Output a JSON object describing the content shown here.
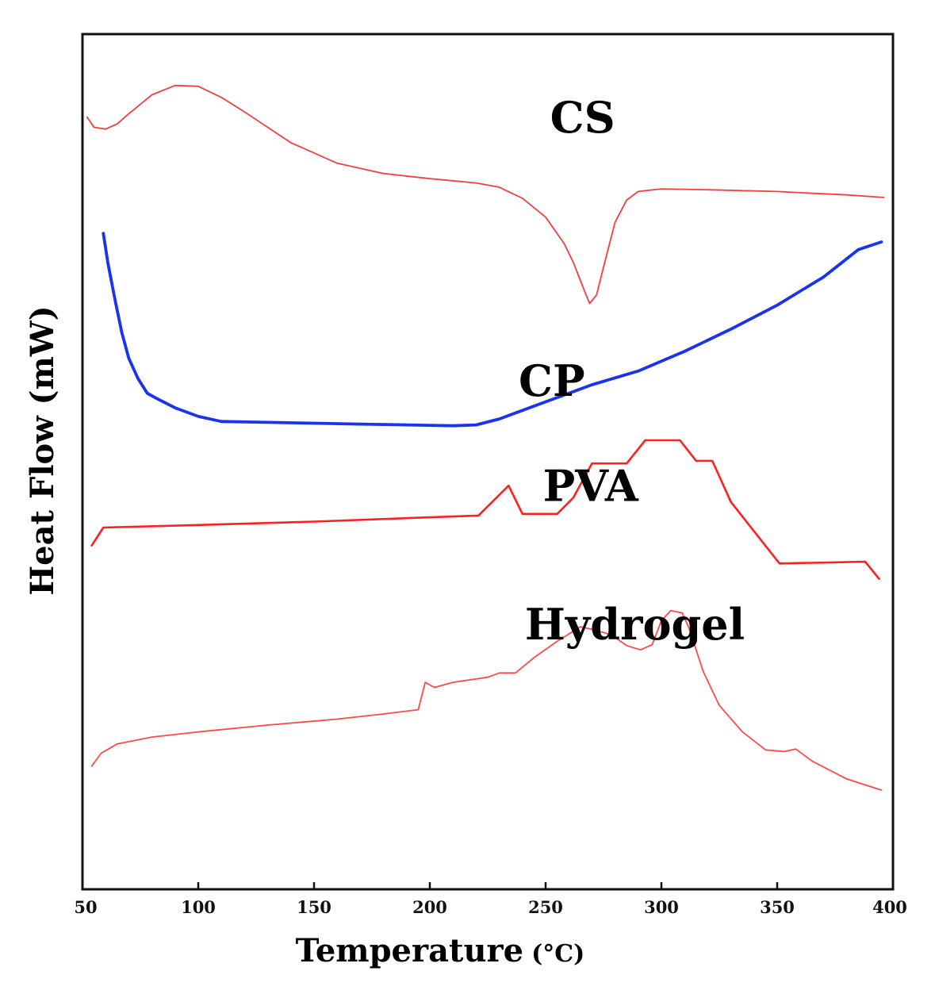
{
  "chart_data": {
    "type": "line",
    "title": "",
    "xlabel": "Temperature",
    "xlabel_unit": "(°C)",
    "ylabel": "Heat Flow (mW)",
    "xlim": [
      50,
      400
    ],
    "ylim": [
      0,
      100
    ],
    "xticks": [
      50,
      100,
      150,
      200,
      250,
      300,
      350,
      400
    ],
    "yticks_shown": false,
    "grid": false,
    "legend": "none",
    "series": [
      {
        "name": "CS",
        "color": "#f04040",
        "stroke": "thin",
        "points": [
          [
            52,
            90.3
          ],
          [
            55,
            89.1
          ],
          [
            60,
            88.9
          ],
          [
            65,
            89.5
          ],
          [
            70,
            90.7
          ],
          [
            80,
            92.9
          ],
          [
            90,
            94.0
          ],
          [
            100,
            93.9
          ],
          [
            110,
            92.6
          ],
          [
            120,
            90.9
          ],
          [
            140,
            87.3
          ],
          [
            160,
            84.9
          ],
          [
            180,
            83.7
          ],
          [
            200,
            83.1
          ],
          [
            220,
            82.6
          ],
          [
            230,
            82.1
          ],
          [
            240,
            80.8
          ],
          [
            250,
            78.6
          ],
          [
            258,
            75.5
          ],
          [
            262,
            73.3
          ],
          [
            266,
            70.5
          ],
          [
            269,
            68.5
          ],
          [
            272,
            69.5
          ],
          [
            276,
            73.8
          ],
          [
            280,
            78.0
          ],
          [
            285,
            80.6
          ],
          [
            290,
            81.6
          ],
          [
            300,
            81.9
          ],
          [
            320,
            81.8
          ],
          [
            350,
            81.6
          ],
          [
            380,
            81.2
          ],
          [
            396,
            80.9
          ]
        ]
      },
      {
        "name": "CP",
        "color": "#1a33ee",
        "stroke": "thick",
        "points": [
          [
            59,
            76.7
          ],
          [
            61,
            73.2
          ],
          [
            64,
            69.0
          ],
          [
            67,
            65.1
          ],
          [
            70,
            62.1
          ],
          [
            74,
            59.7
          ],
          [
            78,
            58.0
          ],
          [
            82,
            57.4
          ],
          [
            90,
            56.3
          ],
          [
            100,
            55.3
          ],
          [
            110,
            54.7
          ],
          [
            130,
            54.6
          ],
          [
            150,
            54.5
          ],
          [
            170,
            54.4
          ],
          [
            190,
            54.3
          ],
          [
            210,
            54.2
          ],
          [
            220,
            54.3
          ],
          [
            230,
            55.0
          ],
          [
            240,
            56.0
          ],
          [
            250,
            57.0
          ],
          [
            260,
            58.0
          ],
          [
            270,
            59.0
          ],
          [
            290,
            60.6
          ],
          [
            310,
            62.9
          ],
          [
            330,
            65.5
          ],
          [
            350,
            68.3
          ],
          [
            370,
            71.6
          ],
          [
            385,
            74.8
          ],
          [
            395,
            75.7
          ]
        ]
      },
      {
        "name": "PVA",
        "color": "#ff2020",
        "stroke": "medium",
        "points": [
          [
            54,
            40.2
          ],
          [
            59,
            42.3
          ],
          [
            100,
            42.6
          ],
          [
            150,
            43.0
          ],
          [
            200,
            43.5
          ],
          [
            221,
            43.7
          ],
          [
            234,
            47.2
          ],
          [
            240,
            43.9
          ],
          [
            255,
            43.9
          ],
          [
            262,
            45.8
          ],
          [
            270,
            49.8
          ],
          [
            285,
            49.8
          ],
          [
            293,
            52.5
          ],
          [
            308,
            52.5
          ],
          [
            315,
            50.1
          ],
          [
            322,
            50.1
          ],
          [
            330,
            45.3
          ],
          [
            351,
            38.1
          ],
          [
            388,
            38.3
          ],
          [
            394,
            36.3
          ]
        ]
      },
      {
        "name": "Hydrogel",
        "color": "#ff4a4a",
        "stroke": "thin",
        "points": [
          [
            54,
            14.4
          ],
          [
            58,
            15.9
          ],
          [
            65,
            17.0
          ],
          [
            80,
            17.8
          ],
          [
            100,
            18.4
          ],
          [
            130,
            19.2
          ],
          [
            160,
            19.9
          ],
          [
            180,
            20.5
          ],
          [
            195,
            21.0
          ],
          [
            198,
            24.2
          ],
          [
            200,
            23.9
          ],
          [
            202,
            23.6
          ],
          [
            210,
            24.2
          ],
          [
            225,
            24.8
          ],
          [
            230,
            25.3
          ],
          [
            237,
            25.3
          ],
          [
            245,
            27.1
          ],
          [
            255,
            29.0
          ],
          [
            265,
            30.7
          ],
          [
            270,
            30.4
          ],
          [
            278,
            29.8
          ],
          [
            285,
            28.5
          ],
          [
            291,
            28.0
          ],
          [
            296,
            28.6
          ],
          [
            300,
            31.4
          ],
          [
            304,
            32.6
          ],
          [
            309,
            32.3
          ],
          [
            312,
            30.5
          ],
          [
            318,
            25.5
          ],
          [
            325,
            21.5
          ],
          [
            335,
            18.4
          ],
          [
            345,
            16.3
          ],
          [
            353,
            16.1
          ],
          [
            358,
            16.4
          ],
          [
            365,
            15.0
          ],
          [
            380,
            12.9
          ],
          [
            395,
            11.6
          ]
        ]
      }
    ],
    "annotations": [
      {
        "text": "CS",
        "x": 280,
        "y": 88.5
      },
      {
        "text": "CP",
        "x": 267,
        "y": 57.7
      },
      {
        "text": "PVA",
        "x": 290,
        "y": 45.4
      },
      {
        "text": "Hydrogel",
        "x": 336,
        "y": 29.2
      }
    ]
  }
}
